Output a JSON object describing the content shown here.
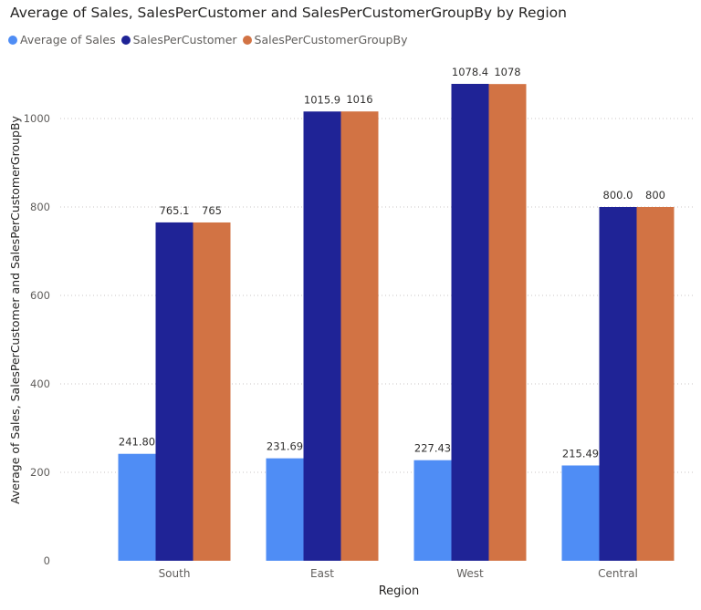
{
  "chart_data": {
    "type": "bar",
    "title": "Average of Sales, SalesPerCustomer and SalesPerCustomerGroupBy by Region",
    "xlabel": "Region",
    "ylabel": "Average of Sales, SalesPerCustomer and SalesPerCustomerGroupBy",
    "categories": [
      "South",
      "East",
      "West",
      "Central"
    ],
    "ylim": [
      0,
      1100
    ],
    "yticks": [
      0,
      200,
      400,
      600,
      800,
      1000
    ],
    "ytick_labels": [
      "0",
      "200",
      "400",
      "600",
      "800",
      "1000"
    ],
    "grid": "horizontal-dotted",
    "legend_position": "top-left",
    "series": [
      {
        "name": "Average of Sales",
        "color": "#4f8df5",
        "values": [
          241.8,
          231.69,
          227.43,
          215.49
        ],
        "labels": [
          "241.80",
          "231.69",
          "227.43",
          "215.49"
        ]
      },
      {
        "name": "SalesPerCustomer",
        "color": "#1f2396",
        "values": [
          765.1,
          1015.9,
          1078.4,
          800.0
        ],
        "labels": [
          "765.1",
          "1015.9",
          "1078.4",
          "800.0"
        ]
      },
      {
        "name": "SalesPerCustomerGroupBy",
        "color": "#d27344",
        "values": [
          765,
          1016,
          1078,
          800
        ],
        "labels": [
          "765",
          "1016",
          "1078",
          "800"
        ]
      }
    ]
  }
}
